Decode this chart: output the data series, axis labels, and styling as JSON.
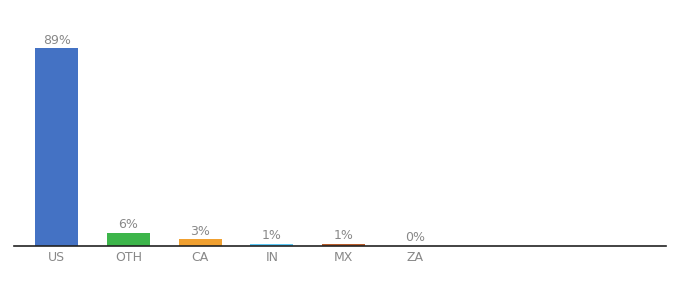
{
  "categories": [
    "US",
    "OTH",
    "CA",
    "IN",
    "MX",
    "ZA"
  ],
  "values": [
    89,
    6,
    3,
    1,
    1,
    0
  ],
  "labels": [
    "89%",
    "6%",
    "3%",
    "1%",
    "1%",
    "0%"
  ],
  "bar_colors": [
    "#4472c4",
    "#3cb54a",
    "#f0a030",
    "#5bc8f5",
    "#b85c2a",
    "#4472c4"
  ],
  "background_color": "#ffffff",
  "ylim": [
    0,
    100
  ],
  "label_fontsize": 9,
  "tick_fontsize": 9,
  "bar_width": 0.6
}
